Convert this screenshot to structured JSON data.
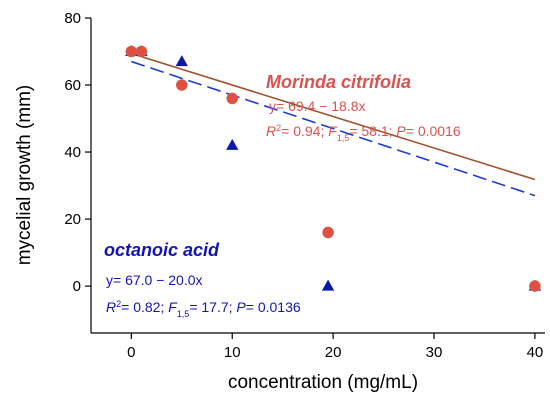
{
  "chart_data": {
    "type": "scatter",
    "xlabel": "concentration (mg/mL)",
    "ylabel": "mycelial growth (mm)",
    "xlim": [
      -4,
      41
    ],
    "ylim": [
      -14,
      80
    ],
    "x_ticks": [
      "0",
      "10",
      "20",
      "30",
      "40"
    ],
    "y_ticks": [
      "0",
      "20",
      "40",
      "60",
      "80"
    ],
    "grid": false,
    "series": [
      {
        "name": "Morinda citrifolia",
        "color": "#e05040",
        "label_color": "#d9534f",
        "line_color": "#a0522d",
        "line_style": "solid",
        "marker": "circle",
        "points": [
          {
            "x": 0,
            "y": 70
          },
          {
            "x": 1,
            "y": 70
          },
          {
            "x": 5,
            "y": 60
          },
          {
            "x": 10,
            "y": 56
          },
          {
            "x": 19.5,
            "y": 16
          },
          {
            "x": 40,
            "y": 0
          }
        ],
        "fit": {
          "intercept": 69.4,
          "slope": -18.8,
          "x_end": 40
        },
        "equation": "y= 69.4 − 18.8x",
        "stats": {
          "r_label": "R",
          "r_sup": "2",
          "r_value": "= 0.94; ",
          "f_label": "F",
          "f_sub": "1,5",
          "f_value": "= 58.1; ",
          "p_label": "P",
          "p_value": "= 0.0016"
        }
      },
      {
        "name": "octanoic acid",
        "color": "#0a1aa6",
        "label_color": "#1414b4",
        "line_color": "#1e3cd2",
        "line_style": "dashed",
        "marker": "triangle",
        "points": [
          {
            "x": 0,
            "y": 70
          },
          {
            "x": 1,
            "y": 70
          },
          {
            "x": 5,
            "y": 67
          },
          {
            "x": 10,
            "y": 42
          },
          {
            "x": 19.5,
            "y": 0
          },
          {
            "x": 40,
            "y": 0
          }
        ],
        "fit": {
          "intercept": 67.0,
          "slope": -20.0,
          "x_end": 40
        },
        "equation": "y= 67.0 − 20.0x",
        "stats": {
          "r_label": "R",
          "r_sup": "2",
          "r_value": "= 0.82; ",
          "f_label": "F",
          "f_sub": "1,5",
          "f_value": "= 17.7; ",
          "p_label": "P",
          "p_value": "= 0.0136"
        }
      }
    ]
  }
}
